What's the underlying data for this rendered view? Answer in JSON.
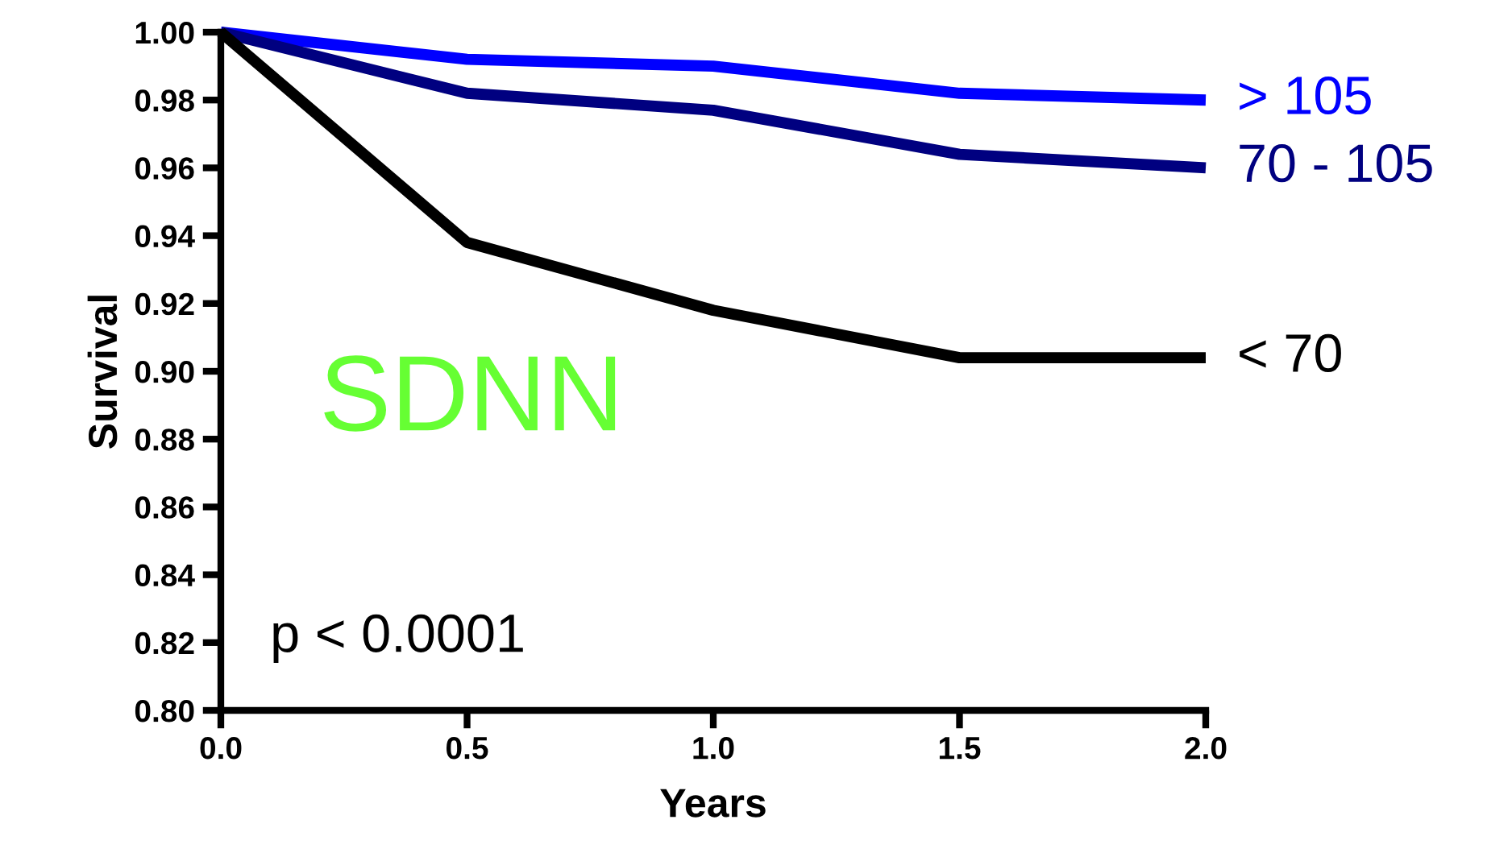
{
  "chart_data": {
    "type": "line",
    "xlabel": "Years",
    "ylabel": "Survival",
    "x": [
      0,
      0.5,
      1.0,
      1.5,
      2.0
    ],
    "series": [
      {
        "name": "> 105",
        "color": "#0000ff",
        "values": [
          1.0,
          0.992,
          0.99,
          0.982,
          0.98
        ]
      },
      {
        "name": "70 - 105",
        "color": "#000080",
        "values": [
          1.0,
          0.982,
          0.977,
          0.964,
          0.96
        ]
      },
      {
        "name": "< 70",
        "color": "#000000",
        "values": [
          1.0,
          0.938,
          0.918,
          0.904,
          0.904
        ]
      }
    ],
    "annotations": [
      "SDNN",
      "p < 0.0001"
    ],
    "xlim": [
      0,
      2.0
    ],
    "ylim": [
      0.8,
      1.0
    ],
    "xticks": [
      {
        "value": 0,
        "label": "0.0"
      },
      {
        "value": 0.5,
        "label": "0.5"
      },
      {
        "value": 1.0,
        "label": "1.0"
      },
      {
        "value": 1.5,
        "label": "1.5"
      },
      {
        "value": 2.0,
        "label": "2.0"
      }
    ],
    "yticks": [
      {
        "value": 0.8,
        "label": "0.80"
      },
      {
        "value": 0.82,
        "label": "0.82"
      },
      {
        "value": 0.84,
        "label": "0.84"
      },
      {
        "value": 0.86,
        "label": "0.86"
      },
      {
        "value": 0.88,
        "label": "0.88"
      },
      {
        "value": 0.9,
        "label": "0.90"
      },
      {
        "value": 0.92,
        "label": "0.92"
      },
      {
        "value": 0.94,
        "label": "0.94"
      },
      {
        "value": 0.96,
        "label": "0.96"
      },
      {
        "value": 0.98,
        "label": "0.98"
      },
      {
        "value": 1.0,
        "label": "1.00"
      }
    ],
    "grid": false,
    "legend": false
  }
}
